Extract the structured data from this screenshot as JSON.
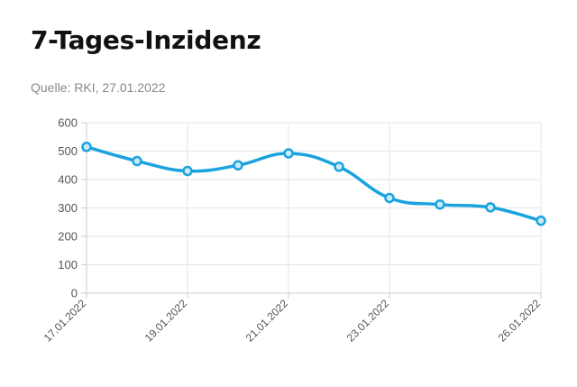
{
  "header": {
    "title": "7-Tages-Inzidenz",
    "source": "Quelle: RKI, 27.01.2022"
  },
  "chart_data": {
    "type": "line",
    "title": "7-Tages-Inzidenz",
    "xlabel": "",
    "ylabel": "",
    "x": [
      "17.01.2022",
      "18.01.2022",
      "19.01.2022",
      "20.01.2022",
      "21.01.2022",
      "22.01.2022",
      "23.01.2022",
      "24.01.2022",
      "25.01.2022",
      "26.01.2022"
    ],
    "x_tick_labels": [
      "17.01.2022",
      "19.01.2022",
      "21.01.2022",
      "23.01.2022",
      "26.01.2022"
    ],
    "series": [
      {
        "values": [
          515,
          465,
          430,
          450,
          492,
          445,
          335,
          312,
          302,
          255
        ]
      }
    ],
    "ylim": [
      0,
      600
    ],
    "yticks": [
      0,
      100,
      200,
      300,
      400,
      500,
      600
    ],
    "grid": true,
    "line_color": "#1aa3df",
    "marker_fill": "#cdeaf7"
  }
}
